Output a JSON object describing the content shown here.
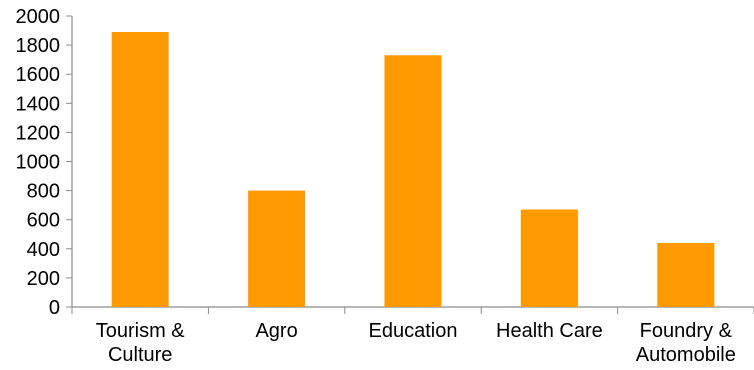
{
  "chart_data": {
    "type": "bar",
    "title": "",
    "xlabel": "",
    "ylabel": "",
    "ylim": [
      0,
      2000
    ],
    "y_ticks": [
      0,
      200,
      400,
      600,
      800,
      1000,
      1200,
      1400,
      1600,
      1800,
      2000
    ],
    "categories": [
      [
        "Tourism &",
        "Culture"
      ],
      [
        "Agro"
      ],
      [
        "Education"
      ],
      [
        "Health Care"
      ],
      [
        "Foundry &",
        "Automobile"
      ]
    ],
    "values": [
      1890,
      800,
      1730,
      670,
      440
    ],
    "bar_color": "#FF9900",
    "axis_color": "#8c8c8c",
    "grid": false,
    "legend": "none"
  }
}
